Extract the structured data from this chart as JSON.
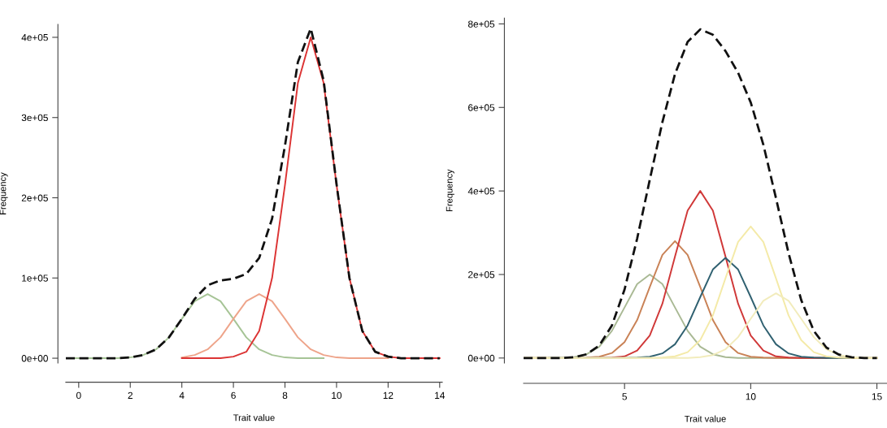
{
  "chart_data": [
    {
      "type": "line",
      "xlabel": "Trait value",
      "ylabel": "Frequency",
      "xlim": [
        -0.5,
        14.1
      ],
      "ylim": [
        -6000,
        416000
      ],
      "xticks": [
        0,
        2,
        4,
        6,
        8,
        10,
        12,
        14
      ],
      "yticks": [
        {
          "value": 0,
          "label": "0e+00"
        },
        {
          "value": 100000,
          "label": "1e+05"
        },
        {
          "value": 200000,
          "label": "2e+05"
        },
        {
          "value": 300000,
          "label": "3e+05"
        },
        {
          "value": 400000,
          "label": "4e+05"
        }
      ],
      "grid": false,
      "marker": "none",
      "line_style": "solid",
      "series": [
        {
          "color": "#a6c496",
          "x": [
            -0.5,
            0,
            0.5,
            1,
            1.5,
            2,
            2.5,
            3,
            3.5,
            4,
            4.5,
            5,
            5.5,
            6,
            6.5,
            7,
            7.5,
            8,
            8.5,
            9,
            9.5
          ],
          "values": [
            0,
            0,
            0,
            0,
            0,
            1000,
            4000,
            11000,
            26000,
            49000,
            71000,
            80000,
            71000,
            49000,
            26000,
            11000,
            4000,
            1000,
            0,
            0,
            0
          ]
        },
        {
          "color": "#eea48a",
          "x": [
            4,
            4.5,
            5,
            5.5,
            6,
            6.5,
            7,
            7.5,
            8,
            8.5,
            9,
            9.5,
            10,
            10.5,
            11,
            11.5,
            12
          ],
          "values": [
            1000,
            4000,
            11000,
            26000,
            49000,
            71000,
            80000,
            71000,
            49000,
            26000,
            11000,
            4000,
            1000,
            0,
            0,
            0,
            0
          ]
        },
        {
          "color": "#dc3434",
          "x": [
            4,
            4.5,
            5,
            5.5,
            6,
            6.5,
            7,
            7.5,
            8,
            8.5,
            9,
            9.5,
            10,
            10.5,
            11,
            11.5,
            12,
            12.5,
            13,
            13.5,
            14
          ],
          "values": [
            0,
            0,
            0,
            0,
            2000,
            8000,
            34000,
            100000,
            216000,
            343000,
            400000,
            343000,
            216000,
            100000,
            34000,
            8000,
            2000,
            0,
            0,
            0,
            0
          ]
        },
        {
          "color": "#111111",
          "line_style": "dashed",
          "x": [
            -0.5,
            0,
            0.5,
            1,
            1.5,
            2,
            2.5,
            3,
            3.5,
            4,
            4.5,
            5,
            5.5,
            6,
            6.5,
            7,
            7.5,
            8,
            8.5,
            9,
            9.5,
            10,
            10.5,
            11,
            11.5,
            12,
            12.5,
            13,
            13.5,
            14
          ],
          "values": [
            0,
            0,
            0,
            0,
            0,
            1000,
            4000,
            11000,
            26000,
            49000,
            74000,
            91000,
            97000,
            99000,
            105000,
            125000,
            174000,
            265000,
            369000,
            411000,
            346000,
            217000,
            100000,
            34000,
            8000,
            2000,
            0,
            0,
            0,
            0
          ]
        }
      ]
    },
    {
      "type": "line",
      "xlabel": "Trait value",
      "ylabel": "Frequency",
      "xlim": [
        1.0,
        15.4
      ],
      "ylim": [
        -12000,
        814000
      ],
      "xticks": [
        5,
        10,
        15
      ],
      "yticks": [
        {
          "value": 0,
          "label": "0e+00"
        },
        {
          "value": 200000,
          "label": "2e+05"
        },
        {
          "value": 400000,
          "label": "4e+05"
        },
        {
          "value": 600000,
          "label": "6e+05"
        },
        {
          "value": 800000,
          "label": "8e+05"
        }
      ],
      "grid": false,
      "marker": "none",
      "line_style": "solid",
      "series": [
        {
          "color": "#a9b994",
          "x": [
            1,
            1.5,
            2,
            2.5,
            3,
            3.5,
            4,
            4.5,
            5,
            5.5,
            6,
            6.5,
            7,
            7.5,
            8,
            8.5,
            9,
            9.5,
            10,
            10.5,
            11,
            11.5,
            12,
            12.5,
            13,
            13.5,
            14,
            14.5,
            15
          ],
          "values": [
            0,
            0,
            0,
            0,
            2000,
            9000,
            27000,
            65000,
            121000,
            177000,
            200000,
            177000,
            121000,
            65000,
            27000,
            9000,
            2000,
            0,
            0,
            0,
            0,
            0,
            0,
            0,
            0,
            0,
            0,
            0,
            0
          ]
        },
        {
          "color": "#c98256",
          "x": [
            1,
            1.5,
            2,
            2.5,
            3,
            3.5,
            4,
            4.5,
            5,
            5.5,
            6,
            6.5,
            7,
            7.5,
            8,
            8.5,
            9,
            9.5,
            10,
            10.5,
            11,
            11.5,
            12,
            12.5,
            13,
            13.5,
            14,
            14.5,
            15
          ],
          "values": [
            0,
            0,
            0,
            0,
            0,
            1000,
            3000,
            12000,
            38000,
            91000,
            170000,
            247000,
            280000,
            247000,
            170000,
            91000,
            38000,
            12000,
            3000,
            1000,
            0,
            0,
            0,
            0,
            0,
            0,
            0,
            0,
            0
          ]
        },
        {
          "color": "#d03838",
          "x": [
            3.5,
            4,
            4.5,
            5,
            5.5,
            6,
            6.5,
            7,
            7.5,
            8,
            8.5,
            9,
            9.5,
            10,
            10.5,
            11,
            11.5,
            12,
            12.5,
            13
          ],
          "values": [
            0,
            0,
            1000,
            4000,
            18000,
            54000,
            130000,
            243000,
            353000,
            400000,
            353000,
            243000,
            130000,
            54000,
            18000,
            4000,
            1000,
            0,
            0,
            0
          ]
        },
        {
          "color": "#2f6070",
          "x": [
            2,
            2.5,
            3,
            3.5,
            4,
            4.5,
            5,
            5.5,
            6,
            6.5,
            7,
            7.5,
            8,
            8.5,
            9,
            9.5,
            10,
            10.5,
            11,
            11.5,
            12,
            12.5,
            13,
            13.5,
            14
          ],
          "values": [
            0,
            0,
            0,
            0,
            0,
            0,
            0,
            1000,
            3000,
            11000,
            33000,
            78000,
            146000,
            212000,
            240000,
            212000,
            146000,
            78000,
            33000,
            11000,
            3000,
            1000,
            0,
            0,
            0
          ]
        },
        {
          "color": "#f4eaa8",
          "x": [
            1,
            1.5,
            2,
            2.5,
            3,
            3.5,
            4,
            4.5,
            5,
            5.5,
            6,
            6.5,
            7,
            7.5,
            8,
            8.5,
            9,
            9.5,
            10,
            10.5,
            11,
            11.5,
            12,
            12.5,
            13,
            13.5,
            14,
            14.5,
            15
          ],
          "values": [
            0,
            0,
            0,
            0,
            0,
            0,
            0,
            0,
            0,
            0,
            0,
            1000,
            4000,
            14000,
            43000,
            102000,
            191000,
            278000,
            315000,
            278000,
            191000,
            102000,
            43000,
            14000,
            4000,
            1000,
            0,
            0,
            0
          ]
        },
        {
          "color": "#f2ecbc",
          "x": [
            1,
            1.5,
            2,
            2.5,
            3,
            3.5,
            4,
            4.5,
            5,
            5.5,
            6,
            6.5,
            7,
            7.5,
            8,
            8.5,
            9,
            9.5,
            10,
            10.5,
            11,
            11.5,
            12,
            12.5,
            13,
            13.5,
            14,
            14.5,
            15
          ],
          "values": [
            0,
            0,
            0,
            0,
            0,
            0,
            0,
            0,
            0,
            0,
            0,
            0,
            0,
            0,
            2000,
            7000,
            21000,
            50000,
            94000,
            137000,
            155000,
            137000,
            94000,
            50000,
            21000,
            7000,
            2000,
            0,
            0
          ]
        },
        {
          "color": "#111111",
          "line_style": "dashed",
          "x": [
            1,
            1.5,
            2,
            2.5,
            3,
            3.5,
            4,
            4.5,
            5,
            5.5,
            6,
            6.5,
            7,
            7.5,
            8,
            8.5,
            9,
            9.5,
            10,
            10.5,
            11,
            11.5,
            12,
            12.5,
            13,
            13.5,
            14,
            14.5,
            15
          ],
          "values": [
            0,
            0,
            0,
            0,
            2000,
            9000,
            30000,
            78000,
            164000,
            286000,
            427000,
            565000,
            680000,
            757000,
            787000,
            774000,
            735000,
            683000,
            612000,
            511000,
            383000,
            251000,
            139000,
            65000,
            25000,
            8000,
            2000,
            0,
            0
          ]
        }
      ]
    }
  ]
}
